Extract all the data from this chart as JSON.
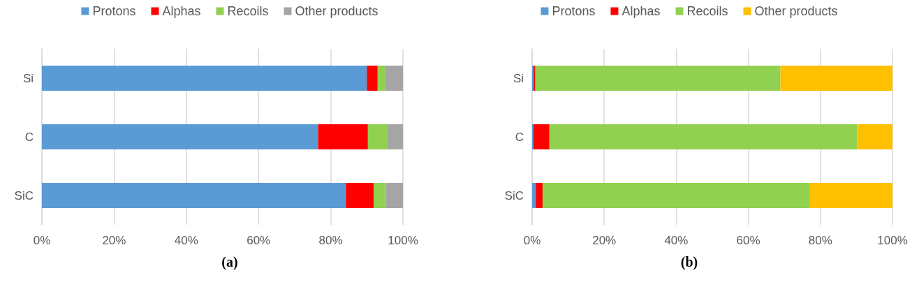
{
  "chart_data": [
    {
      "type": "bar",
      "orientation": "horizontal",
      "stacked": true,
      "categories": [
        "Si",
        "C",
        "SiC"
      ],
      "series": [
        {
          "name": "Protons",
          "color": "#5b9bd5",
          "values": [
            90,
            76.5,
            84.2
          ]
        },
        {
          "name": "Alphas",
          "color": "#ff0000",
          "values": [
            3,
            13.8,
            7.7
          ]
        },
        {
          "name": "Recoils",
          "color": "#92d050",
          "values": [
            2,
            5.3,
            3.4
          ]
        },
        {
          "name": "Other products",
          "color": "#a5a5a5",
          "values": [
            5,
            4.4,
            4.7
          ]
        }
      ],
      "xlim": [
        0,
        100
      ],
      "xticks": [
        {
          "value": 0,
          "label": "0%"
        },
        {
          "value": 20,
          "label": "20%"
        },
        {
          "value": 40,
          "label": "40%"
        },
        {
          "value": 60,
          "label": "60%"
        },
        {
          "value": 80,
          "label": "80%"
        },
        {
          "value": 100,
          "label": "100%"
        }
      ],
      "grid": "x",
      "legend": "top",
      "annotations": [
        "(a)"
      ]
    },
    {
      "type": "bar",
      "orientation": "horizontal",
      "stacked": true,
      "categories": [
        "Si",
        "C",
        "SiC"
      ],
      "series": [
        {
          "name": "Protons",
          "color": "#5b9bd5",
          "values": [
            0.4,
            0.3,
            1.0
          ]
        },
        {
          "name": "Alphas",
          "color": "#ff0000",
          "values": [
            0.5,
            4.5,
            1.9
          ]
        },
        {
          "name": "Recoils",
          "color": "#92d050",
          "values": [
            68.0,
            85.4,
            74.2
          ]
        },
        {
          "name": "Other products",
          "color": "#ffc000",
          "values": [
            31.1,
            9.8,
            22.9
          ]
        }
      ],
      "xlim": [
        0,
        100
      ],
      "xticks": [
        {
          "value": 0,
          "label": "0%"
        },
        {
          "value": 20,
          "label": "20%"
        },
        {
          "value": 40,
          "label": "40%"
        },
        {
          "value": 60,
          "label": "60%"
        },
        {
          "value": 80,
          "label": "80%"
        },
        {
          "value": 100,
          "label": "100%"
        }
      ],
      "grid": "x",
      "legend": "top",
      "annotations": [
        "(b)"
      ]
    }
  ]
}
